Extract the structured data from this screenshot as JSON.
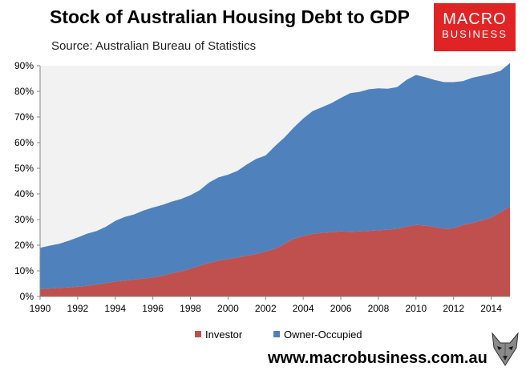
{
  "title": "Stock of Australian Housing Debt to GDP",
  "subtitle": "Source: Australian Bureau of Statistics",
  "logo": {
    "line1": "MACRO",
    "line2": "BUSINESS"
  },
  "website": "www.macrobusiness.com.au",
  "colors": {
    "investor": "#c0504d",
    "owner_occupied": "#4f81bd",
    "plot_background": "#f2f2f2",
    "logo": "#e02426"
  },
  "chart_data": {
    "type": "area",
    "stacked": true,
    "xlim": [
      1990,
      2015
    ],
    "ylim": [
      0,
      90
    ],
    "x_ticks": [
      "1990",
      "1992",
      "1994",
      "1996",
      "1998",
      "2000",
      "2002",
      "2004",
      "2006",
      "2008",
      "2010",
      "2012",
      "2014"
    ],
    "y_ticks": [
      "0%",
      "10%",
      "20%",
      "30%",
      "40%",
      "50%",
      "60%",
      "70%",
      "80%",
      "90%"
    ],
    "legend_position": "bottom",
    "grid": false,
    "x": [
      1990,
      1990.5,
      1991,
      1991.5,
      1992,
      1992.5,
      1993,
      1993.5,
      1994,
      1994.5,
      1995,
      1995.5,
      1996,
      1996.5,
      1997,
      1997.5,
      1998,
      1998.5,
      1999,
      1999.5,
      2000,
      2000.5,
      2001,
      2001.5,
      2002,
      2002.5,
      2003,
      2003.5,
      2004,
      2004.5,
      2005,
      2005.5,
      2006,
      2006.5,
      2007,
      2007.5,
      2008,
      2008.5,
      2009,
      2009.5,
      2010,
      2010.5,
      2011,
      2011.5,
      2012,
      2012.5,
      2013,
      2013.5,
      2014,
      2014.5,
      2015
    ],
    "series": [
      {
        "name": "Investor",
        "values": [
          2.8,
          3.1,
          3.3,
          3.5,
          3.8,
          4.2,
          4.7,
          5.2,
          5.8,
          6.2,
          6.6,
          7.0,
          7.4,
          8.1,
          9.0,
          9.8,
          10.8,
          12.0,
          13.1,
          14.0,
          14.6,
          15.2,
          15.9,
          16.6,
          17.5,
          18.6,
          20.5,
          22.5,
          23.6,
          24.4,
          24.8,
          25.1,
          25.4,
          25.2,
          25.4,
          25.6,
          25.8,
          26.1,
          26.4,
          27.3,
          27.9,
          27.7,
          27.1,
          26.4,
          26.6,
          27.9,
          28.7,
          29.7,
          30.8,
          32.9,
          35.0
        ]
      },
      {
        "name": "Owner-Occupied",
        "values": [
          16.2,
          16.7,
          17.2,
          18.2,
          19.2,
          20.3,
          20.8,
          22.0,
          23.7,
          24.8,
          25.4,
          26.5,
          27.3,
          27.6,
          28.0,
          28.2,
          28.7,
          29.5,
          31.4,
          32.5,
          32.9,
          33.8,
          35.6,
          37.1,
          37.5,
          40.1,
          41.5,
          43.4,
          45.8,
          47.9,
          49.0,
          50.3,
          52.0,
          54.1,
          54.4,
          55.2,
          55.4,
          54.9,
          55.3,
          57.2,
          58.5,
          57.8,
          57.3,
          57.2,
          57.0,
          56.1,
          56.6,
          56.4,
          56.1,
          55.1,
          56.0
        ]
      }
    ]
  }
}
